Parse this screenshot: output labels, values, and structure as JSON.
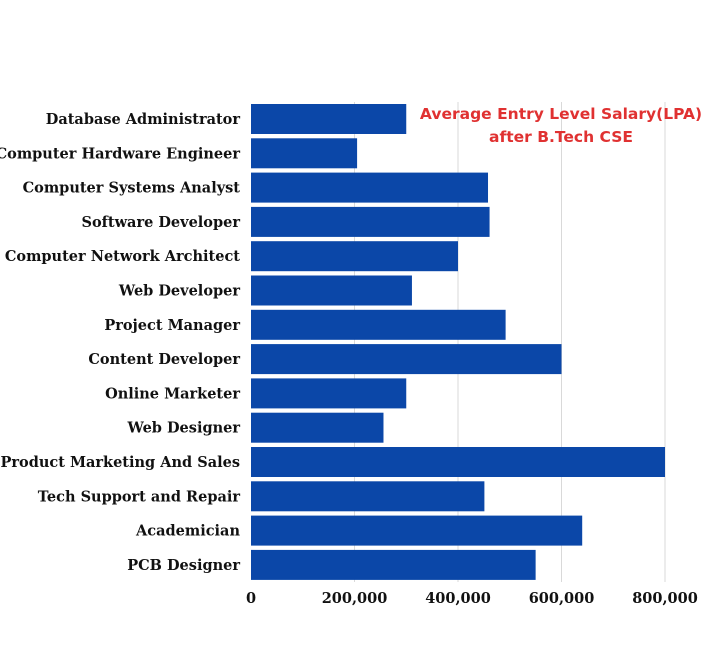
{
  "chart_data": {
    "type": "bar",
    "orientation": "horizontal",
    "title_lines": [
      "Average Entry Level Salary(LPA)",
      "after B.Tech CSE"
    ],
    "title_color": "#e03131",
    "bar_color": "#0b47a8",
    "grid_color": "#d9d9d9",
    "categories": [
      "Database Administrator",
      "Computer Hardware Engineer",
      "Computer Systems Analyst",
      "Software Developer",
      "Computer Network Architect",
      "Web Developer",
      "Project Manager",
      "Content Developer",
      "Online Marketer",
      "Web Designer",
      "Product Marketing And Sales",
      "Tech Support and Repair",
      "Academician",
      "PCB Designer"
    ],
    "values": [
      300000,
      205000,
      458000,
      461000,
      400000,
      311000,
      492000,
      600000,
      300000,
      256000,
      800000,
      451000,
      640000,
      550000
    ],
    "xlim": [
      0,
      800000
    ],
    "xticks": [
      0,
      200000,
      400000,
      600000,
      800000
    ],
    "xtick_labels": [
      "0",
      "200,000",
      "400,000",
      "600,000",
      "800,000"
    ],
    "grid": "vertical"
  }
}
